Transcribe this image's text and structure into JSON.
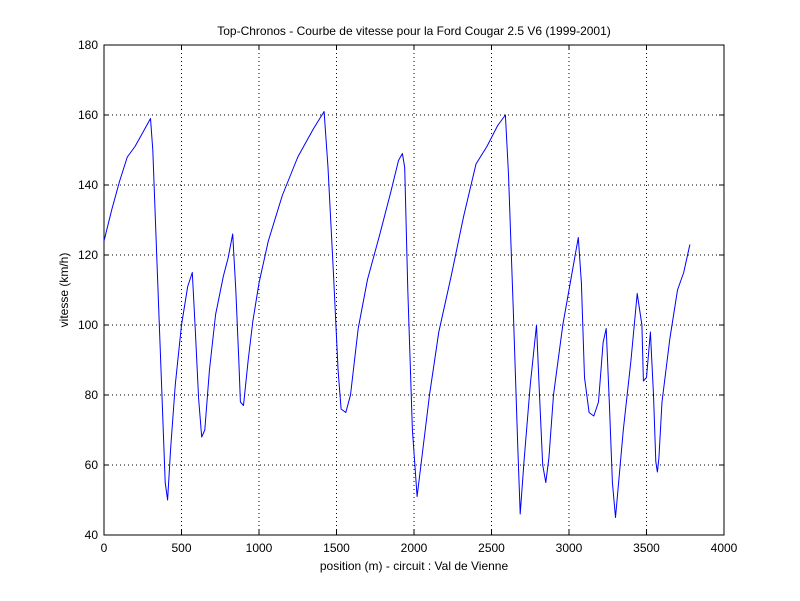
{
  "chart_data": {
    "type": "line",
    "title": "Top-Chronos - Courbe de vitesse pour la Ford Cougar 2.5 V6 (1999-2001)",
    "xlabel": "position (m) - circuit : Val de Vienne",
    "ylabel": "vitesse (km/h)",
    "xlim": [
      0,
      4000
    ],
    "ylim": [
      40,
      180
    ],
    "xticks": [
      0,
      500,
      1000,
      1500,
      2000,
      2500,
      3000,
      3500,
      4000
    ],
    "yticks": [
      40,
      60,
      80,
      100,
      120,
      140,
      160,
      180
    ],
    "grid": true,
    "line_color": "#0000ff",
    "series": [
      {
        "x": [
          0,
          50,
          100,
          150,
          200,
          250,
          300,
          315,
          340,
          370,
          395,
          410,
          430,
          460,
          500,
          540,
          570,
          590,
          610,
          630,
          650,
          680,
          720,
          770,
          800,
          830,
          850,
          870,
          880,
          900,
          930,
          960,
          1000,
          1060,
          1150,
          1250,
          1350,
          1420,
          1445,
          1480,
          1510,
          1530,
          1560,
          1590,
          1640,
          1700,
          1780,
          1850,
          1900,
          1925,
          1940,
          1960,
          1990,
          2020,
          2050,
          2100,
          2160,
          2240,
          2320,
          2400,
          2470,
          2540,
          2590,
          2610,
          2640,
          2670,
          2685,
          2710,
          2750,
          2790,
          2810,
          2830,
          2850,
          2870,
          2900,
          2960,
          3020,
          3060,
          3080,
          3100,
          3130,
          3160,
          3190,
          3220,
          3240,
          3260,
          3280,
          3300,
          3350,
          3400,
          3440,
          3470,
          3480,
          3500,
          3525,
          3545,
          3560,
          3570,
          3580,
          3600,
          3650,
          3700,
          3740,
          3780
        ],
        "y": [
          124,
          133,
          141,
          148,
          151,
          155,
          159,
          150,
          120,
          85,
          55,
          50,
          65,
          83,
          100,
          111,
          115,
          98,
          79,
          68,
          70,
          87,
          103,
          114,
          119,
          126,
          110,
          90,
          78,
          77,
          90,
          101,
          112,
          124,
          137,
          148,
          156,
          161,
          145,
          115,
          87,
          76,
          75,
          80,
          99,
          113,
          126,
          138,
          147,
          149,
          145,
          110,
          70,
          51,
          62,
          80,
          98,
          114,
          131,
          146,
          151,
          157,
          160,
          143,
          105,
          65,
          46,
          61,
          83,
          100,
          80,
          60,
          55,
          62,
          80,
          100,
          115,
          125,
          112,
          85,
          75,
          74,
          78,
          95,
          99,
          78,
          55,
          45,
          70,
          90,
          109,
          100,
          84,
          85,
          98,
          80,
          61,
          58,
          62,
          78,
          96,
          110,
          115,
          123
        ]
      }
    ]
  }
}
